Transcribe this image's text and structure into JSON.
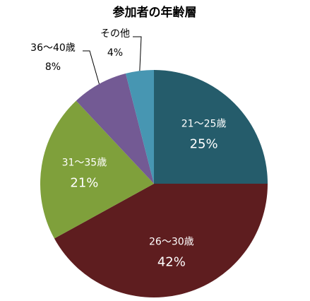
{
  "chart_data": {
    "type": "pie",
    "title": "参加者の年齢層",
    "categories": [
      "21〜25歳",
      "26〜30歳",
      "31〜35歳",
      "36〜40歳",
      "その他"
    ],
    "values": [
      25,
      42,
      21,
      8,
      4
    ],
    "value_labels": [
      "25%",
      "42%",
      "21%",
      "8%",
      "4%"
    ],
    "colors": [
      "#255c6b",
      "#5e1d1f",
      "#7fa03b",
      "#735a94",
      "#4796b2"
    ]
  }
}
